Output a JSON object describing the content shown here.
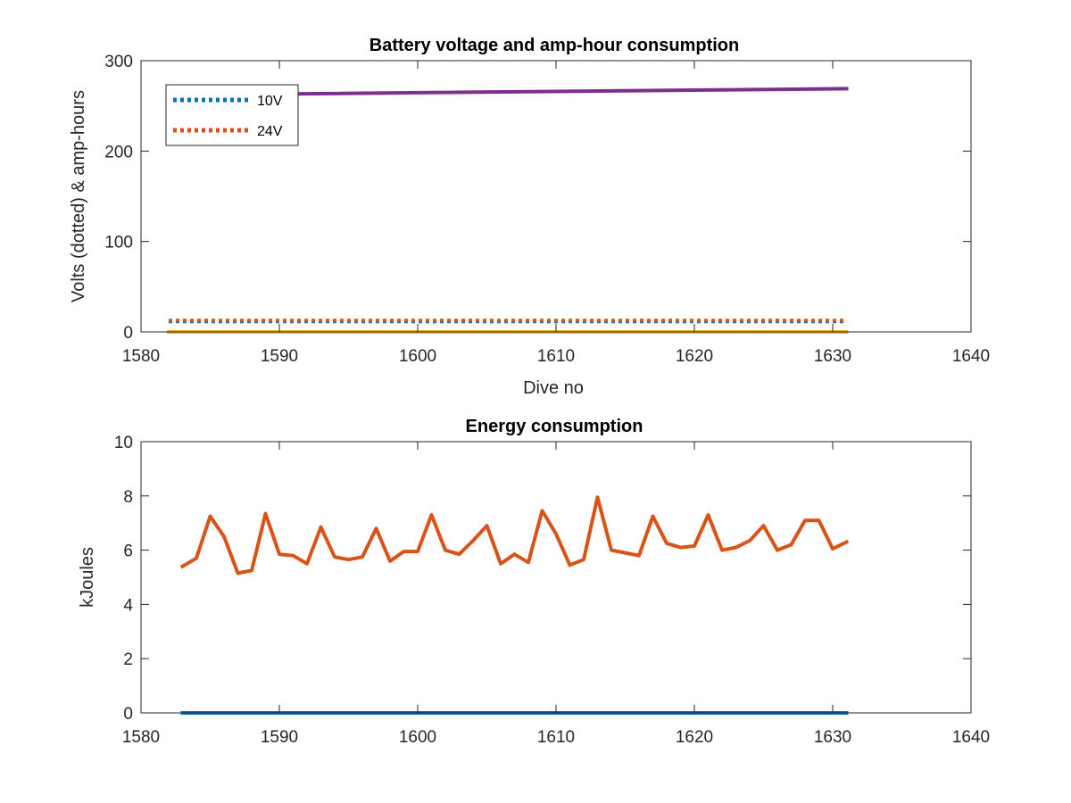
{
  "chart_data": [
    {
      "type": "line",
      "title": "Battery voltage and amp-hour consumption",
      "xlabel": "Dive no",
      "ylabel": "Volts (dotted) & amp-hours",
      "xlim": [
        1580,
        1640
      ],
      "ylim": [
        0,
        300
      ],
      "xticks": [
        1580,
        1590,
        1600,
        1610,
        1620,
        1630,
        1640
      ],
      "yticks": [
        0,
        100,
        200,
        300
      ],
      "grid": false,
      "legend_position": "top-left",
      "series": [
        {
          "name": "10V",
          "style": "dotted",
          "color": "#0072BD",
          "x": [
            1582,
            1631
          ],
          "y": [
            11.5,
            11.5
          ]
        },
        {
          "name": "24V",
          "style": "dotted",
          "color": "#D95319",
          "x": [
            1582,
            1631
          ],
          "y": [
            12.5,
            12.5
          ]
        },
        {
          "style": "solid",
          "color": "#EDB120",
          "x": [
            1582,
            1631
          ],
          "y": [
            0,
            0
          ]
        },
        {
          "style": "solid",
          "color": "#7E2F8E",
          "x": [
            1582,
            1631
          ],
          "y": [
            262,
            269
          ]
        }
      ]
    },
    {
      "type": "line",
      "title": "Energy consumption",
      "xlabel": "",
      "ylabel": "kJoules",
      "xlim": [
        1580,
        1640
      ],
      "ylim": [
        0,
        10
      ],
      "xticks": [
        1580,
        1590,
        1600,
        1610,
        1620,
        1630,
        1640
      ],
      "yticks": [
        0,
        2,
        4,
        6,
        8,
        10
      ],
      "grid": false,
      "series": [
        {
          "style": "solid",
          "color": "#0072BD",
          "x": [
            1583,
            1631
          ],
          "y": [
            0,
            0
          ]
        },
        {
          "style": "solid",
          "color": "#D95319",
          "x": [
            1583,
            1584,
            1585,
            1586,
            1587,
            1588,
            1589,
            1590,
            1591,
            1592,
            1593,
            1594,
            1595,
            1596,
            1597,
            1598,
            1599,
            1600,
            1601,
            1602,
            1603,
            1604,
            1605,
            1606,
            1607,
            1608,
            1609,
            1610,
            1611,
            1612,
            1613,
            1614,
            1615,
            1616,
            1617,
            1618,
            1619,
            1620,
            1621,
            1622,
            1623,
            1624,
            1625,
            1626,
            1627,
            1628,
            1629,
            1630,
            1631
          ],
          "y": [
            5.4,
            5.7,
            7.25,
            6.5,
            5.15,
            5.25,
            7.35,
            5.85,
            5.8,
            5.5,
            6.85,
            5.75,
            5.65,
            5.75,
            6.8,
            5.6,
            5.95,
            5.95,
            7.3,
            6.0,
            5.85,
            6.35,
            6.9,
            5.5,
            5.85,
            5.55,
            7.45,
            6.6,
            5.45,
            5.65,
            7.95,
            6.0,
            5.9,
            5.8,
            7.25,
            6.25,
            6.1,
            6.15,
            7.3,
            6.0,
            6.1,
            6.35,
            6.9,
            6.0,
            6.2,
            7.1,
            7.1,
            6.05,
            6.3
          ]
        }
      ]
    }
  ]
}
